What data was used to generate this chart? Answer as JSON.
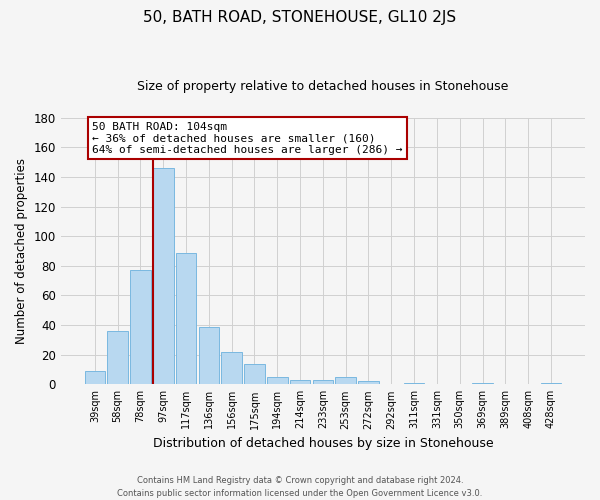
{
  "title": "50, BATH ROAD, STONEHOUSE, GL10 2JS",
  "subtitle": "Size of property relative to detached houses in Stonehouse",
  "xlabel": "Distribution of detached houses by size in Stonehouse",
  "ylabel": "Number of detached properties",
  "bar_color": "#b8d8f0",
  "bar_edge_color": "#7ab8e0",
  "categories": [
    "39sqm",
    "58sqm",
    "78sqm",
    "97sqm",
    "117sqm",
    "136sqm",
    "156sqm",
    "175sqm",
    "194sqm",
    "214sqm",
    "233sqm",
    "253sqm",
    "272sqm",
    "292sqm",
    "311sqm",
    "331sqm",
    "350sqm",
    "369sqm",
    "389sqm",
    "408sqm",
    "428sqm"
  ],
  "values": [
    9,
    36,
    77,
    146,
    89,
    39,
    22,
    14,
    5,
    3,
    3,
    5,
    2,
    0,
    1,
    0,
    0,
    1,
    0,
    0,
    1
  ],
  "ylim": [
    0,
    180
  ],
  "yticks": [
    0,
    20,
    40,
    60,
    80,
    100,
    120,
    140,
    160,
    180
  ],
  "vline_color": "#aa0000",
  "annotation_line1": "50 BATH ROAD: 104sqm",
  "annotation_line2": "← 36% of detached houses are smaller (160)",
  "annotation_line3": "64% of semi-detached houses are larger (286) →",
  "footer_line1": "Contains HM Land Registry data © Crown copyright and database right 2024.",
  "footer_line2": "Contains public sector information licensed under the Open Government Licence v3.0.",
  "background_color": "#f5f5f5",
  "grid_color": "#d0d0d0",
  "title_fontsize": 11,
  "subtitle_fontsize": 9
}
